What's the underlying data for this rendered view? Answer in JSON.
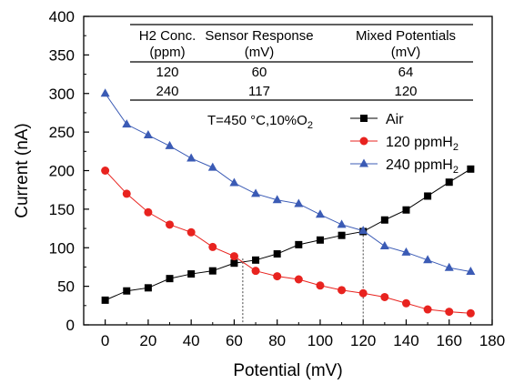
{
  "chart_data": {
    "type": "line",
    "xlabel": "Potential (mV)",
    "ylabel": "Current (nA)",
    "xlim": [
      -10,
      180
    ],
    "ylim": [
      0,
      400
    ],
    "xticks": [
      0,
      20,
      40,
      60,
      80,
      100,
      120,
      140,
      160,
      180
    ],
    "yticks": [
      0,
      50,
      100,
      150,
      200,
      250,
      300,
      350,
      400
    ],
    "x": [
      0,
      10,
      20,
      30,
      40,
      50,
      60,
      70,
      80,
      90,
      100,
      110,
      120,
      130,
      140,
      150,
      160,
      170
    ],
    "series": [
      {
        "name": "Air",
        "color": "#000000",
        "marker": "square",
        "values": [
          32,
          44,
          48,
          60,
          66,
          70,
          80,
          84,
          92,
          104,
          110,
          116,
          121,
          136,
          149,
          167,
          185,
          202
        ]
      },
      {
        "name": "120 ppmH2",
        "color": "#e8231f",
        "marker": "circle",
        "values": [
          200,
          170,
          146,
          130,
          120,
          101,
          89,
          70,
          63,
          59,
          51,
          45,
          41,
          36,
          28,
          20,
          17,
          15
        ]
      },
      {
        "name": "240 ppmH2",
        "color": "#3b5bb5",
        "marker": "triangle",
        "values": [
          300,
          260,
          246,
          232,
          216,
          204,
          184,
          170,
          162,
          157,
          143,
          130,
          122,
          102,
          94,
          84,
          74,
          69
        ]
      }
    ],
    "legend_position": "center-right",
    "annotation": "T=450 °C,10%O2",
    "dotted_guides": [
      {
        "x": 64,
        "y": 86
      },
      {
        "x": 120,
        "y": 121
      }
    ],
    "table": {
      "headers": [
        {
          "main": "H2 Conc.",
          "sub": "(ppm)"
        },
        {
          "main": "Sensor Response",
          "sub": "(mV)"
        },
        {
          "main": "Mixed Potentials",
          "sub": "(mV)"
        }
      ],
      "rows": [
        [
          "120",
          "60",
          "64"
        ],
        [
          "240",
          "117",
          "120"
        ]
      ]
    }
  }
}
